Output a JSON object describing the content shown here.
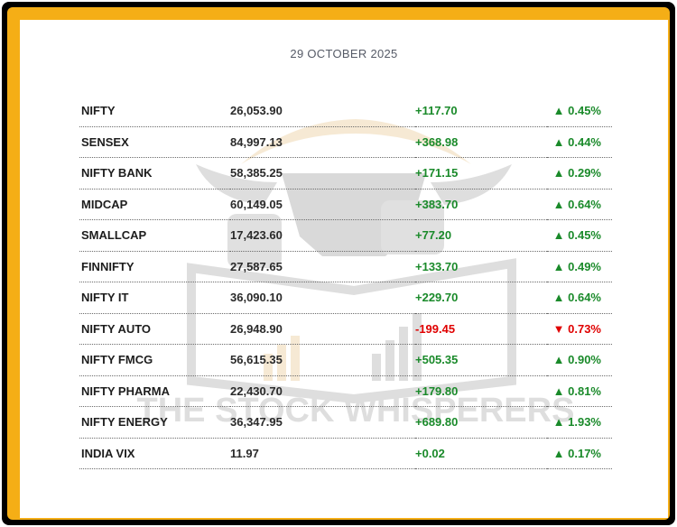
{
  "date": "29 OCTOBER 2025",
  "watermark_text": "THE STOCK WHISPERERS",
  "colors": {
    "frame_outer": "#000000",
    "frame_gold": "#f5ae16",
    "positive": "#1a8a2a",
    "negative": "#e00000"
  },
  "rows": [
    {
      "name": "NIFTY",
      "value": "26,053.90",
      "change": "+117.70",
      "pct": "▲ 0.45%",
      "direction": "up"
    },
    {
      "name": "SENSEX",
      "value": "84,997.13",
      "change": "+368.98",
      "pct": "▲ 0.44%",
      "direction": "up"
    },
    {
      "name": "NIFTY BANK",
      "value": "58,385.25",
      "change": "+171.15",
      "pct": "▲ 0.29%",
      "direction": "up"
    },
    {
      "name": "MIDCAP",
      "value": "60,149.05",
      "change": "+383.70",
      "pct": "▲ 0.64%",
      "direction": "up"
    },
    {
      "name": "SMALLCAP",
      "value": "17,423.60",
      "change": "+77.20",
      "pct": "▲ 0.45%",
      "direction": "up"
    },
    {
      "name": "FINNIFTY",
      "value": "27,587.65",
      "change": "+133.70",
      "pct": "▲ 0.49%",
      "direction": "up"
    },
    {
      "name": "NIFTY IT",
      "value": "36,090.10",
      "change": "+229.70",
      "pct": "▲ 0.64%",
      "direction": "up"
    },
    {
      "name": "NIFTY AUTO",
      "value": "26,948.90",
      "change": "-199.45",
      "pct": "▼ 0.73%",
      "direction": "down"
    },
    {
      "name": "NIFTY FMCG",
      "value": "56,615.35",
      "change": "+505.35",
      "pct": "▲ 0.90%",
      "direction": "up"
    },
    {
      "name": "NIFTY PHARMA",
      "value": "22,430.70",
      "change": "+179.80",
      "pct": "▲ 0.81%",
      "direction": "up"
    },
    {
      "name": "NIFTY ENERGY",
      "value": "36,347.95",
      "change": "+689.80",
      "pct": "▲ 1.93%",
      "direction": "up"
    },
    {
      "name": "INDIA VIX",
      "value": "11.97",
      "change": "+0.02",
      "pct": "▲ 0.17%",
      "direction": "up"
    }
  ]
}
